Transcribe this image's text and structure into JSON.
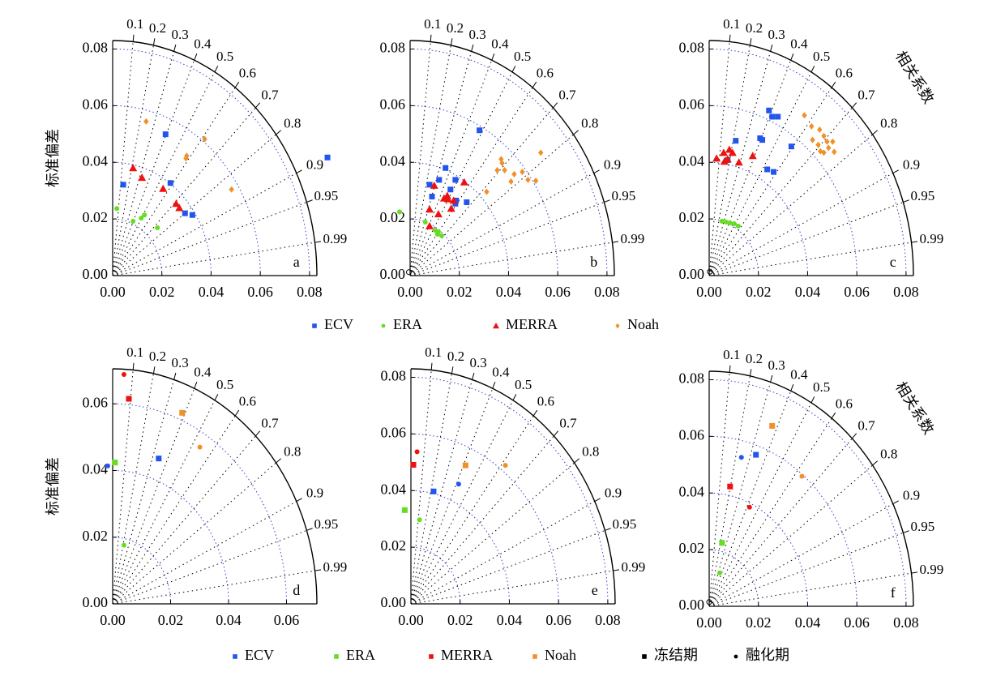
{
  "chart_data": [
    {
      "type": "taylor",
      "label": "a",
      "ylabel": "标准偏差",
      "xlim": [
        0,
        0.083
      ],
      "ylim": [
        0,
        0.083
      ],
      "xticks": [
        {
          "value": 0,
          "label": "0.00"
        },
        {
          "value": 0.02,
          "label": "0.02"
        },
        {
          "value": 0.04,
          "label": "0.04"
        },
        {
          "value": 0.06,
          "label": "0.06"
        },
        {
          "value": 0.08,
          "label": "0.08"
        }
      ],
      "yticks": [
        {
          "value": 0,
          "label": "0.00"
        },
        {
          "value": 0.02,
          "label": "0.02"
        },
        {
          "value": 0.04,
          "label": "0.04"
        },
        {
          "value": 0.06,
          "label": "0.06"
        },
        {
          "value": 0.08,
          "label": "0.08"
        }
      ],
      "corr": [
        0.1,
        0.2,
        0.3,
        0.4,
        0.5,
        0.6,
        0.7,
        0.8,
        0.9,
        0.95,
        0.99
      ],
      "series": [
        {
          "color": "#2255ee",
          "marker": "square",
          "x": [
            0.0873,
            0.0215,
            0.0043,
            0.0235,
            0.0294,
            0.0324
          ],
          "values": [
            0.0417,
            0.0499,
            0.0321,
            0.0327,
            0.022,
            0.0214
          ]
        },
        {
          "color": "#66dd22",
          "marker": "circle",
          "x": [
            0.0017,
            0.0083,
            0.0116,
            0.0129,
            0.0182
          ],
          "values": [
            0.0237,
            0.0192,
            0.0203,
            0.0214,
            0.0169
          ]
        },
        {
          "color": "#ee1111",
          "marker": "triangle",
          "x": [
            0.0083,
            0.0119,
            0.0205,
            0.0258,
            0.0271
          ],
          "values": [
            0.038,
            0.0346,
            0.0307,
            0.0254,
            0.0239
          ]
        },
        {
          "color": "#f0902a",
          "marker": "diamond",
          "x": [
            0.0136,
            0.0374,
            0.0301,
            0.0298,
            0.0483
          ],
          "values": [
            0.0544,
            0.0482,
            0.0423,
            0.0414,
            0.0304
          ]
        }
      ]
    },
    {
      "type": "taylor",
      "label": "b",
      "xlim": [
        0,
        0.083
      ],
      "ylim": [
        0,
        0.083
      ],
      "xticks": [
        {
          "value": 0,
          "label": "0.00"
        },
        {
          "value": 0.02,
          "label": "0.02"
        },
        {
          "value": 0.04,
          "label": "0.04"
        },
        {
          "value": 0.06,
          "label": "0.06"
        },
        {
          "value": 0.08,
          "label": "0.08"
        }
      ],
      "yticks": [
        {
          "value": 0,
          "label": "0.00"
        },
        {
          "value": 0.02,
          "label": "0.02"
        },
        {
          "value": 0.04,
          "label": "0.04"
        },
        {
          "value": 0.06,
          "label": "0.06"
        },
        {
          "value": 0.08,
          "label": "0.08"
        }
      ],
      "corr": [
        0.1,
        0.2,
        0.3,
        0.4,
        0.5,
        0.6,
        0.7,
        0.8,
        0.9,
        0.95,
        0.99
      ],
      "series": [
        {
          "color": "#2255ee",
          "marker": "square",
          "x": [
            0.0282,
            0.0144,
            0.0079,
            0.0118,
            0.0184,
            0.0089,
            0.0164,
            0.0187,
            0.023,
            0.0184
          ],
          "values": [
            0.0513,
            0.038,
            0.0321,
            0.0338,
            0.0338,
            0.0279,
            0.0304,
            0.0265,
            0.0259,
            0.0254
          ]
        },
        {
          "color": "#66dd22",
          "marker": "circle",
          "x": [
            -0.0043,
            0.0062,
            0.0102,
            0.0115,
            0.0128,
            0.0111
          ],
          "values": [
            0.0225,
            0.0189,
            0.016,
            0.0155,
            0.0141,
            0.0146
          ]
        },
        {
          "color": "#ee1111",
          "marker": "triangle",
          "x": [
            0.0098,
            0.0079,
            0.0115,
            0.0079,
            0.0138,
            0.0154,
            0.0177,
            0.022,
            0.0167,
            0.0151
          ],
          "values": [
            0.0318,
            0.0234,
            0.0217,
            0.0175,
            0.0273,
            0.027,
            0.0265,
            0.033,
            0.0237,
            0.0282
          ]
        },
        {
          "color": "#f0902a",
          "marker": "diamond",
          "x": [
            0.037,
            0.0374,
            0.0354,
            0.0384,
            0.0423,
            0.0456,
            0.041,
            0.0479,
            0.0511,
            0.0531,
            0.0311
          ],
          "values": [
            0.0411,
            0.0397,
            0.0372,
            0.0372,
            0.0358,
            0.0366,
            0.0332,
            0.0338,
            0.0335,
            0.0434,
            0.0296
          ]
        },
        {
          "color": "#000000",
          "marker": "open-circle",
          "x": [
            -0.0005
          ],
          "values": [
            0.0012
          ]
        }
      ]
    },
    {
      "type": "taylor",
      "label": "c",
      "corr_label": "相关系数",
      "xlim": [
        0,
        0.083
      ],
      "ylim": [
        0,
        0.083
      ],
      "xticks": [
        {
          "value": 0,
          "label": "0.00"
        },
        {
          "value": 0.02,
          "label": "0.02"
        },
        {
          "value": 0.04,
          "label": "0.04"
        },
        {
          "value": 0.06,
          "label": "0.06"
        },
        {
          "value": 0.08,
          "label": "0.08"
        }
      ],
      "yticks": [
        {
          "value": 0,
          "label": "0.00"
        },
        {
          "value": 0.02,
          "label": "0.02"
        },
        {
          "value": 0.04,
          "label": "0.04"
        },
        {
          "value": 0.06,
          "label": "0.06"
        },
        {
          "value": 0.08,
          "label": "0.08"
        }
      ],
      "corr": [
        0.1,
        0.2,
        0.3,
        0.4,
        0.5,
        0.6,
        0.7,
        0.8,
        0.9,
        0.95,
        0.99
      ],
      "series": [
        {
          "color": "#2255ee",
          "marker": "square",
          "x": [
            0.0243,
            0.0256,
            0.0279,
            0.0108,
            0.0207,
            0.0216,
            0.0334,
            0.0236,
            0.0262,
            0.0075
          ],
          "values": [
            0.0583,
            0.0561,
            0.0561,
            0.0476,
            0.0485,
            0.0479,
            0.0456,
            0.0375,
            0.0366,
            0.0408
          ]
        },
        {
          "color": "#66dd22",
          "marker": "circle",
          "x": [
            0.0052,
            0.0069,
            0.0085,
            0.0102,
            0.0118
          ],
          "values": [
            0.0192,
            0.0189,
            0.0186,
            0.0183,
            0.0175
          ]
        },
        {
          "color": "#ee1111",
          "marker": "triangle",
          "x": [
            0.003,
            0.0059,
            0.0062,
            0.0082,
            0.0095,
            0.0075,
            0.0121,
            0.0177
          ],
          "values": [
            0.0414,
            0.0434,
            0.0403,
            0.0445,
            0.0434,
            0.0411,
            0.04,
            0.0423
          ]
        },
        {
          "color": "#f0902a",
          "marker": "diamond",
          "x": [
            0.0387,
            0.0416,
            0.0449,
            0.0466,
            0.042,
            0.0443,
            0.0479,
            0.0502,
            0.0485,
            0.0452,
            0.0508,
            0.0466
          ],
          "values": [
            0.0566,
            0.0527,
            0.0515,
            0.0493,
            0.0479,
            0.0462,
            0.0473,
            0.0473,
            0.0451,
            0.0439,
            0.0437,
            0.0434
          ]
        },
        {
          "color": "#000000",
          "marker": "open-circle",
          "x": [
            0.0003
          ],
          "values": [
            0.0014
          ]
        }
      ]
    },
    {
      "type": "taylor",
      "label": "d",
      "ylabel": "标准偏差",
      "xlim": [
        0,
        0.0705
      ],
      "ylim": [
        0,
        0.0705
      ],
      "xticks": [
        {
          "value": 0,
          "label": "0.00"
        },
        {
          "value": 0.02,
          "label": "0.02"
        },
        {
          "value": 0.04,
          "label": "0.04"
        },
        {
          "value": 0.06,
          "label": "0.06"
        }
      ],
      "yticks": [
        {
          "value": 0,
          "label": "0.00"
        },
        {
          "value": 0.02,
          "label": "0.02"
        },
        {
          "value": 0.04,
          "label": "0.04"
        },
        {
          "value": 0.06,
          "label": "0.06"
        }
      ],
      "corr": [
        0.1,
        0.2,
        0.3,
        0.4,
        0.5,
        0.6,
        0.7,
        0.8,
        0.9,
        0.95,
        0.99
      ],
      "series": [
        {
          "color": "#2255ee",
          "marker": "square",
          "x": [
            0.0159
          ],
          "values": [
            0.0436
          ]
        },
        {
          "color": "#2255ee",
          "marker": "circle",
          "x": [
            -0.0017
          ],
          "values": [
            0.0414
          ]
        },
        {
          "color": "#66dd22",
          "marker": "square",
          "x": [
            0.0008
          ],
          "values": [
            0.0424
          ]
        },
        {
          "color": "#66dd22",
          "marker": "circle",
          "x": [
            0.0039
          ],
          "values": [
            0.0176
          ]
        },
        {
          "color": "#ee1111",
          "marker": "square",
          "x": [
            0.0056
          ],
          "values": [
            0.0615
          ]
        },
        {
          "color": "#ee1111",
          "marker": "circle",
          "x": [
            0.0039
          ],
          "values": [
            0.0688
          ]
        },
        {
          "color": "#f0902a",
          "marker": "square",
          "x": [
            0.024
          ],
          "values": [
            0.0573
          ]
        },
        {
          "color": "#f0902a",
          "marker": "circle",
          "x": [
            0.0301
          ],
          "values": [
            0.047
          ]
        }
      ]
    },
    {
      "type": "taylor",
      "label": "e",
      "xlim": [
        0,
        0.083
      ],
      "ylim": [
        0,
        0.083
      ],
      "xticks": [
        {
          "value": 0,
          "label": "0.00"
        },
        {
          "value": 0.02,
          "label": "0.02"
        },
        {
          "value": 0.04,
          "label": "0.04"
        },
        {
          "value": 0.06,
          "label": "0.06"
        },
        {
          "value": 0.08,
          "label": "0.08"
        }
      ],
      "yticks": [
        {
          "value": 0,
          "label": "0.00"
        },
        {
          "value": 0.02,
          "label": "0.02"
        },
        {
          "value": 0.04,
          "label": "0.04"
        },
        {
          "value": 0.06,
          "label": "0.06"
        },
        {
          "value": 0.08,
          "label": "0.08"
        }
      ],
      "corr": [
        0.1,
        0.2,
        0.3,
        0.4,
        0.5,
        0.6,
        0.7,
        0.8,
        0.9,
        0.95,
        0.99
      ],
      "series": [
        {
          "color": "#2255ee",
          "marker": "square",
          "x": [
            0.0092
          ],
          "values": [
            0.0397
          ]
        },
        {
          "color": "#2255ee",
          "marker": "circle",
          "x": [
            0.0194
          ],
          "values": [
            0.0423
          ]
        },
        {
          "color": "#66dd22",
          "marker": "square",
          "x": [
            -0.0025
          ],
          "values": [
            0.0331
          ]
        },
        {
          "color": "#66dd22",
          "marker": "circle",
          "x": [
            0.0035
          ],
          "values": [
            0.0297
          ]
        },
        {
          "color": "#ee1111",
          "marker": "square",
          "x": [
            0.001
          ],
          "values": [
            0.0491
          ]
        },
        {
          "color": "#ee1111",
          "marker": "circle",
          "x": [
            0.0025
          ],
          "values": [
            0.0537
          ]
        },
        {
          "color": "#f0902a",
          "marker": "square",
          "x": [
            0.0222
          ],
          "values": [
            0.0489
          ]
        },
        {
          "color": "#f0902a",
          "marker": "circle",
          "x": [
            0.0384
          ],
          "values": [
            0.0489
          ]
        }
      ]
    },
    {
      "type": "taylor",
      "label": "f",
      "corr_label": "相关系数",
      "xlim": [
        0,
        0.083
      ],
      "ylim": [
        0,
        0.083
      ],
      "xticks": [
        {
          "value": 0,
          "label": "0.00"
        },
        {
          "value": 0.02,
          "label": "0.02"
        },
        {
          "value": 0.04,
          "label": "0.04"
        },
        {
          "value": 0.06,
          "label": "0.06"
        },
        {
          "value": 0.08,
          "label": "0.08"
        }
      ],
      "yticks": [
        {
          "value": 0,
          "label": "0.00"
        },
        {
          "value": 0.02,
          "label": "0.02"
        },
        {
          "value": 0.04,
          "label": "0.04"
        },
        {
          "value": 0.06,
          "label": "0.06"
        },
        {
          "value": 0.08,
          "label": "0.08"
        }
      ],
      "corr": [
        0.1,
        0.2,
        0.3,
        0.4,
        0.5,
        0.6,
        0.7,
        0.8,
        0.9,
        0.95,
        0.99
      ],
      "series": [
        {
          "color": "#2255ee",
          "marker": "square",
          "x": [
            0.019
          ],
          "values": [
            0.0535
          ]
        },
        {
          "color": "#2255ee",
          "marker": "circle",
          "x": [
            0.0131
          ],
          "values": [
            0.0526
          ]
        },
        {
          "color": "#66dd22",
          "marker": "square",
          "x": [
            0.0052
          ],
          "values": [
            0.0224
          ]
        },
        {
          "color": "#66dd22",
          "marker": "circle",
          "x": [
            0.0043
          ],
          "values": [
            0.0118
          ]
        },
        {
          "color": "#ee1111",
          "marker": "square",
          "x": [
            0.0085
          ],
          "values": [
            0.0423
          ]
        },
        {
          "color": "#ee1111",
          "marker": "circle",
          "x": [
            0.0164
          ],
          "values": [
            0.035
          ]
        },
        {
          "color": "#f0902a",
          "marker": "square",
          "x": [
            0.0256
          ],
          "values": [
            0.0637
          ]
        },
        {
          "color": "#f0902a",
          "marker": "circle",
          "x": [
            0.0377
          ],
          "values": [
            0.0459
          ]
        },
        {
          "color": "#000000",
          "marker": "open-circle",
          "x": [
            0.0
          ],
          "values": [
            0.0015
          ]
        }
      ]
    }
  ],
  "legends": [
    {
      "items": [
        {
          "name": "ECV",
          "color": "#2255ee",
          "marker": "square"
        },
        {
          "name": "ERA",
          "color": "#66dd22",
          "marker": "circle"
        },
        {
          "name": "MERRA",
          "color": "#ee1111",
          "marker": "triangle"
        },
        {
          "name": "Noah",
          "color": "#f0902a",
          "marker": "diamond"
        }
      ]
    },
    {
      "items": [
        {
          "name": "ECV",
          "color": "#2255ee",
          "marker": "square"
        },
        {
          "name": "ERA",
          "color": "#66dd22",
          "marker": "square"
        },
        {
          "name": "MERRA",
          "color": "#ee1111",
          "marker": "square"
        },
        {
          "name": "Noah",
          "color": "#f0902a",
          "marker": "square"
        },
        {
          "name": "冻结期",
          "color": "#000000",
          "marker": "square"
        },
        {
          "name": "融化期",
          "color": "#000000",
          "marker": "circle"
        }
      ]
    }
  ]
}
